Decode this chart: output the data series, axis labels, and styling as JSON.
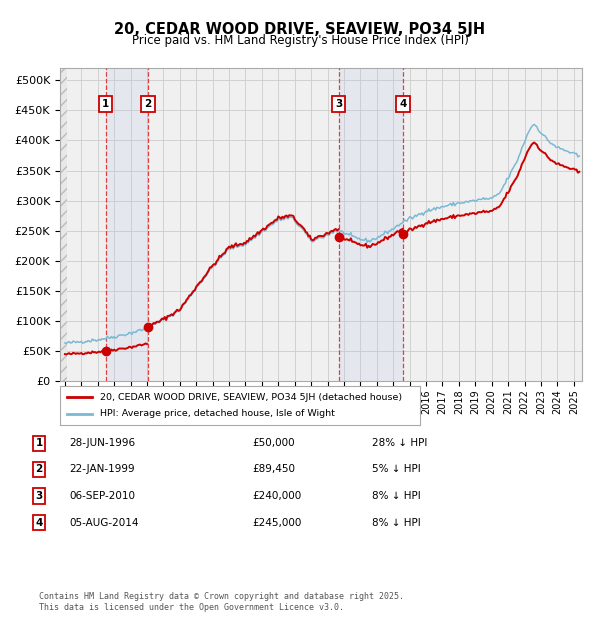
{
  "title": "20, CEDAR WOOD DRIVE, SEAVIEW, PO34 5JH",
  "subtitle": "Price paid vs. HM Land Registry's House Price Index (HPI)",
  "xlim": [
    1993.7,
    2025.5
  ],
  "ylim": [
    0,
    520000
  ],
  "yticks": [
    0,
    50000,
    100000,
    150000,
    200000,
    250000,
    300000,
    350000,
    400000,
    450000,
    500000
  ],
  "ytick_labels": [
    "£0",
    "£50K",
    "£100K",
    "£150K",
    "£200K",
    "£250K",
    "£300K",
    "£350K",
    "£400K",
    "£450K",
    "£500K"
  ],
  "transactions": [
    {
      "num": 1,
      "date": "28-JUN-1996",
      "year": 1996.49,
      "price": 50000,
      "label": "28-JUN-1996",
      "price_str": "£50,000",
      "hpi_str": "28% ↓ HPI"
    },
    {
      "num": 2,
      "date": "22-JAN-1999",
      "year": 1999.06,
      "price": 89450,
      "label": "22-JAN-1999",
      "price_str": "£89,450",
      "hpi_str": "5% ↓ HPI"
    },
    {
      "num": 3,
      "date": "06-SEP-2010",
      "year": 2010.68,
      "price": 240000,
      "label": "06-SEP-2010",
      "price_str": "£240,000",
      "hpi_str": "8% ↓ HPI"
    },
    {
      "num": 4,
      "date": "05-AUG-2014",
      "year": 2014.59,
      "price": 245000,
      "label": "05-AUG-2014",
      "price_str": "£245,000",
      "hpi_str": "8% ↓ HPI"
    }
  ],
  "hpi_color": "#7bb8d4",
  "price_color": "#cc0000",
  "grid_color": "#cccccc",
  "legend_entry1": "20, CEDAR WOOD DRIVE, SEAVIEW, PO34 5JH (detached house)",
  "legend_entry2": "HPI: Average price, detached house, Isle of Wight",
  "footer": "Contains HM Land Registry data © Crown copyright and database right 2025.\nThis data is licensed under the Open Government Licence v3.0.",
  "background_color": "#ffffff",
  "plot_bg_color": "#f0f0f0"
}
